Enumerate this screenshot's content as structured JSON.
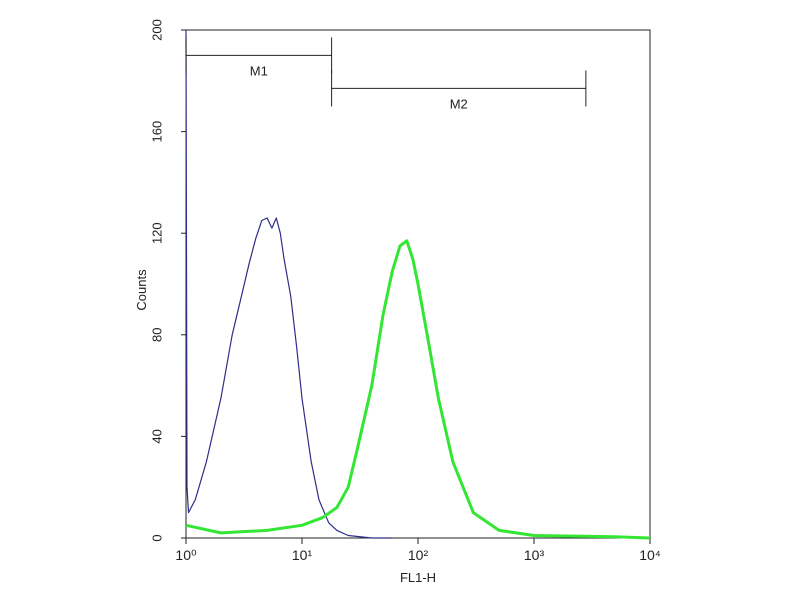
{
  "chart_data": {
    "type": "line",
    "x_label": "FL1-H",
    "y_label": "Counts",
    "log_x": true,
    "xlim": [
      1,
      10000
    ],
    "ylim": [
      0,
      200
    ],
    "xticks": [
      {
        "value": 1,
        "label": "10⁰"
      },
      {
        "value": 10,
        "label": "10¹"
      },
      {
        "value": 100,
        "label": "10²"
      },
      {
        "value": 1000,
        "label": "10³"
      },
      {
        "value": 10000,
        "label": "10⁴"
      }
    ],
    "yticks": [
      0,
      40,
      80,
      120,
      160,
      200
    ],
    "series": [
      {
        "color": "#2e2e8a",
        "width": 1.2,
        "x": [
          1,
          1.02,
          1.05,
          1.2,
          1.5,
          2,
          2.5,
          3,
          3.5,
          4,
          4.5,
          5,
          5.5,
          6,
          6.5,
          7,
          8,
          9,
          10,
          12,
          14,
          17,
          20,
          25,
          40,
          60
        ],
        "values": [
          200,
          20,
          10,
          15,
          30,
          55,
          80,
          95,
          108,
          118,
          125,
          126,
          122,
          126,
          120,
          110,
          95,
          75,
          55,
          30,
          15,
          6,
          3,
          1,
          0,
          0
        ]
      },
      {
        "color": "#33e633",
        "width": 3,
        "x": [
          1,
          2,
          5,
          10,
          15,
          20,
          25,
          30,
          40,
          50,
          60,
          70,
          80,
          90,
          100,
          120,
          150,
          200,
          300,
          500,
          1000,
          5000,
          10000
        ],
        "values": [
          5,
          2,
          3,
          5,
          8,
          12,
          20,
          35,
          60,
          88,
          105,
          115,
          117,
          110,
          100,
          80,
          55,
          30,
          10,
          3,
          1,
          0.5,
          0
        ]
      }
    ],
    "markers": [
      {
        "label": "M1",
        "range": [
          1,
          18
        ],
        "y": 190
      },
      {
        "label": "M2",
        "range": [
          18,
          2800
        ],
        "y": 177
      }
    ]
  }
}
